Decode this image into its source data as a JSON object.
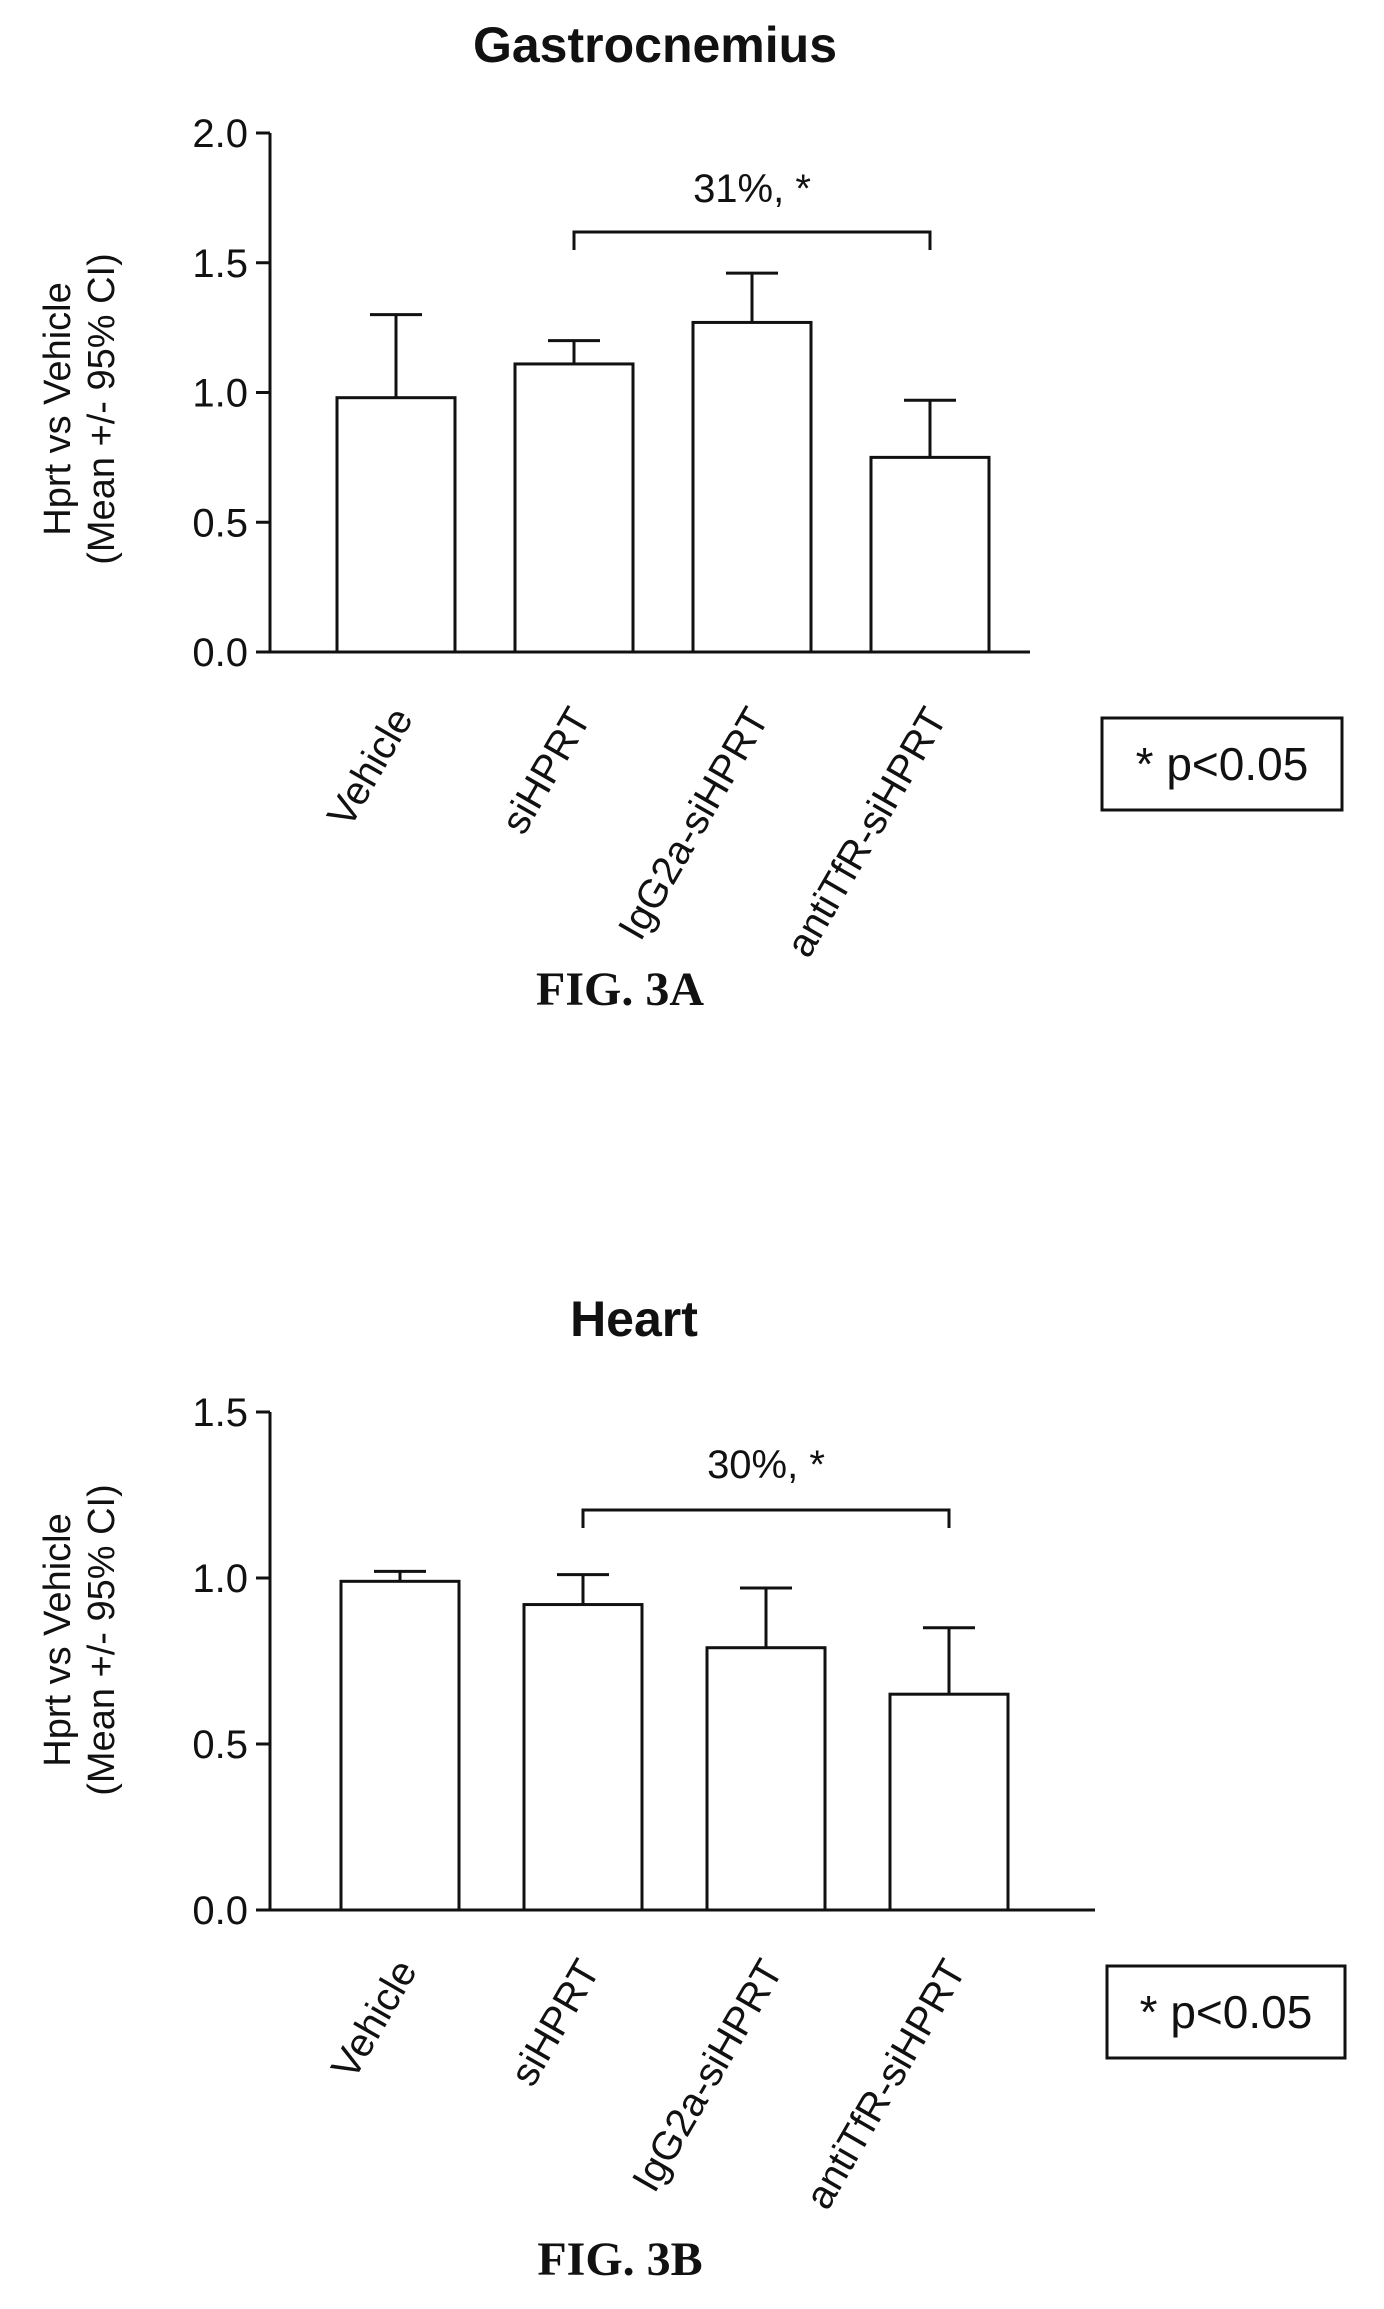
{
  "chart_data": [
    {
      "type": "bar",
      "title": "Gastrocnemius",
      "ylabel": [
        "Hprt vs Vehicle",
        "(Mean +/- 95% CI)"
      ],
      "ylim": [
        0,
        2.0
      ],
      "yticks": [
        "0.0",
        "0.5",
        "1.0",
        "1.5",
        "2.0"
      ],
      "categories": [
        "Vehicle",
        "siHPRT",
        "IgG2a-siHPRT",
        "antiTfR-siHPRT"
      ],
      "values": [
        0.98,
        1.11,
        1.27,
        0.75
      ],
      "error_upper": [
        1.3,
        1.2,
        1.46,
        0.97
      ],
      "annotation": "31%, *",
      "bracket": [
        "siHPRT",
        "antiTfR-siHPRT"
      ],
      "legend_note": "* p<0.05",
      "caption": "FIG. 3A"
    },
    {
      "type": "bar",
      "title": "Heart",
      "ylabel": [
        "Hprt vs Vehicle",
        "(Mean +/- 95% CI)"
      ],
      "ylim": [
        0,
        1.5
      ],
      "yticks": [
        "0.0",
        "0.5",
        "1.0",
        "1.5"
      ],
      "categories": [
        "Vehicle",
        "siHPRT",
        "IgG2a-siHPRT",
        "antiTfR-siHPRT"
      ],
      "values": [
        0.99,
        0.92,
        0.79,
        0.65
      ],
      "error_upper": [
        1.02,
        1.01,
        0.97,
        0.85
      ],
      "annotation": "30%, *",
      "bracket": [
        "siHPRT",
        "antiTfR-siHPRT"
      ],
      "legend_note": "* p<0.05",
      "caption": "FIG. 3B"
    }
  ]
}
